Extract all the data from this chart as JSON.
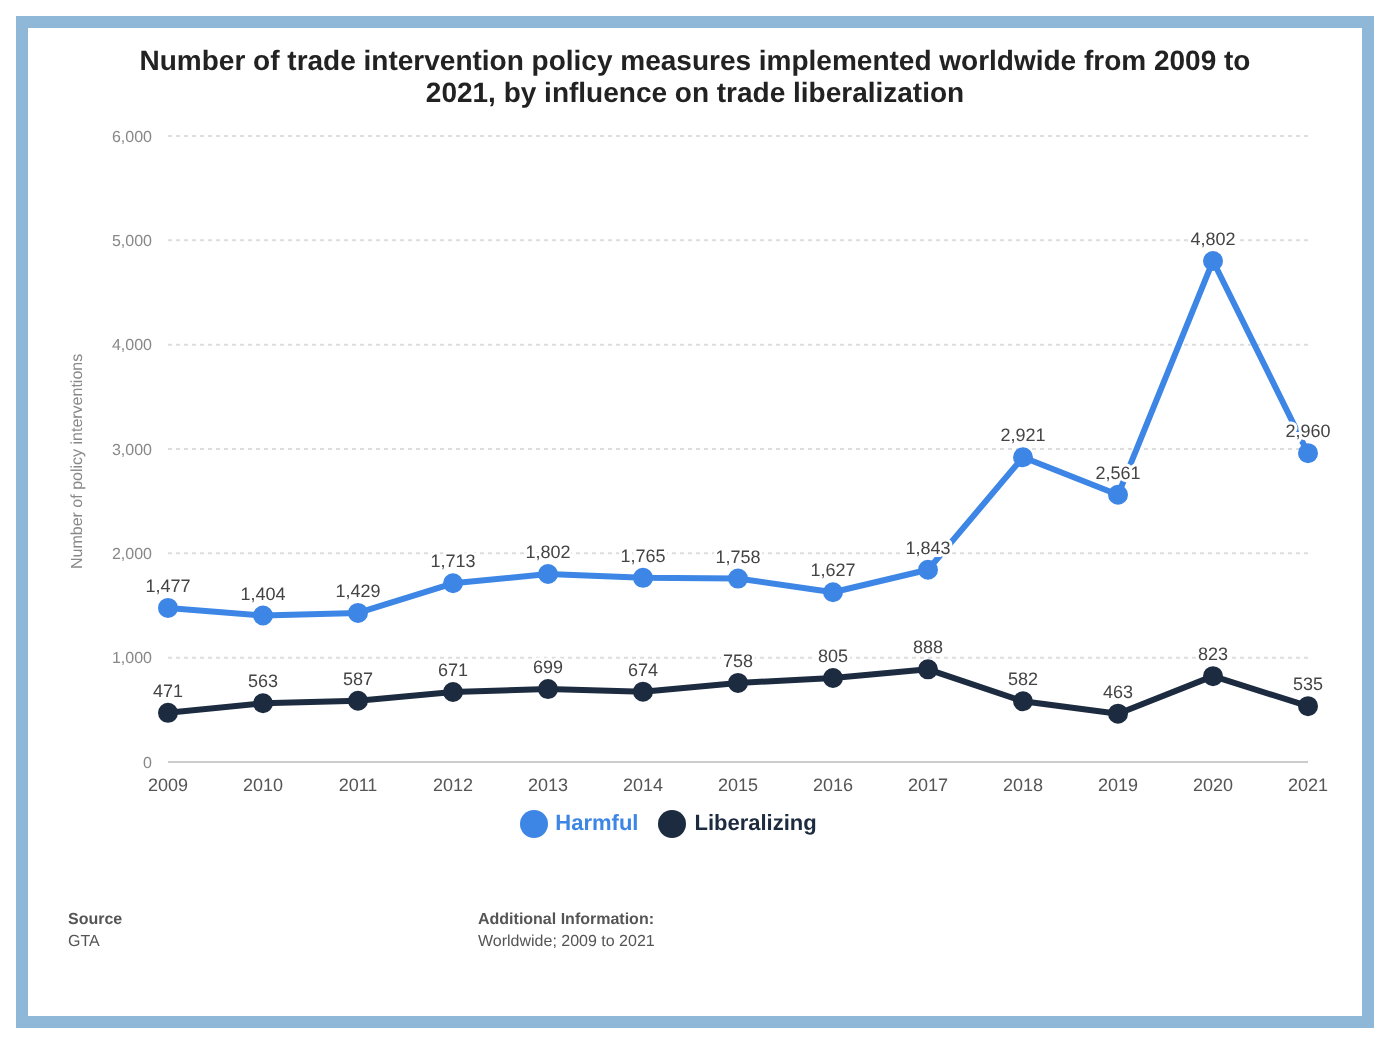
{
  "chart_data": {
    "type": "line",
    "title": "Number of trade intervention policy measures implemented worldwide from 2009 to 2021, by influence on trade liberalization",
    "ylabel": "Number of policy interventions",
    "categories": [
      "2009",
      "2010",
      "2011",
      "2012",
      "2013",
      "2014",
      "2015",
      "2016",
      "2017",
      "2018",
      "2019",
      "2020",
      "2021"
    ],
    "series": [
      {
        "name": "Harmful",
        "color": "#3d86e6",
        "values": [
          1477,
          1404,
          1429,
          1713,
          1802,
          1765,
          1758,
          1627,
          1843,
          2921,
          2561,
          4802,
          2960
        ],
        "value_labels": [
          "1,477",
          "1,404",
          "1,429",
          "1,713",
          "1,802",
          "1,765",
          "1,758",
          "1,627",
          "1,843",
          "2,921",
          "2,561",
          "4,802",
          "2,960"
        ]
      },
      {
        "name": "Liberalizing",
        "color": "#1c2b3f",
        "values": [
          471,
          563,
          587,
          671,
          699,
          674,
          758,
          805,
          888,
          582,
          463,
          823,
          535
        ],
        "value_labels": [
          "471",
          "563",
          "587",
          "671",
          "699",
          "674",
          "758",
          "805",
          "888",
          "582",
          "463",
          "823",
          "535"
        ]
      }
    ],
    "ylim": [
      0,
      6000
    ],
    "yticks": [
      0,
      {
        "value": 1000,
        "label": "1,000"
      },
      {
        "value": 2000,
        "label": "2,000"
      },
      {
        "value": 3000,
        "label": "3,000"
      },
      {
        "value": 4000,
        "label": "4,000"
      },
      {
        "value": 5000,
        "label": "5,000"
      },
      {
        "value": 6000,
        "label": "6,000"
      }
    ],
    "grid": "y",
    "legend": "bottom",
    "marker": "circle",
    "line_style": "solid",
    "annotations": [
      "Source",
      "GTA",
      "Additional Information:",
      "Worldwide; 2009 to 2021"
    ]
  }
}
